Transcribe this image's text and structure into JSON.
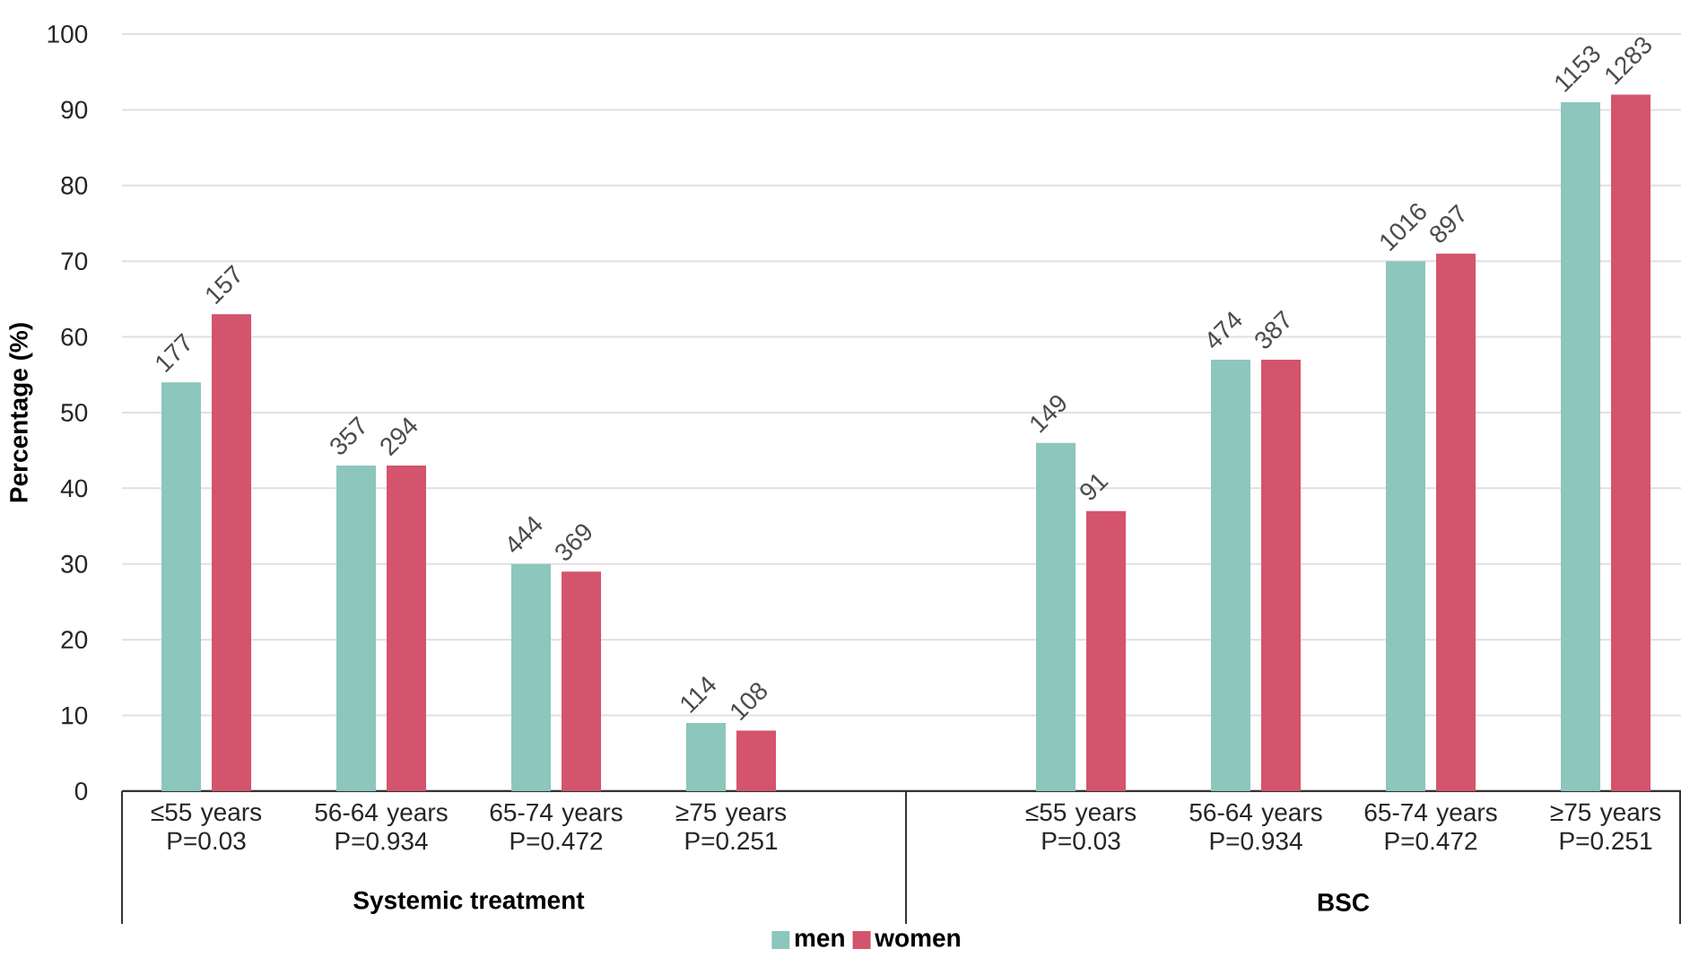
{
  "chart_data": {
    "type": "bar",
    "ylabel": "Percentage (%)",
    "categories": [
      "≤55 years P=0.03",
      "56-64 years P=0.934",
      "65-74 years P=0.472",
      "≥75 years P=0.251",
      null,
      "≤55 years P=0.03",
      "56-64 years P=0.934",
      "65-74 years P=0.472",
      "≥75 years P=0.251"
    ],
    "series": [
      {
        "name": "men",
        "color": "#8cc6bd",
        "values": [
          54,
          43,
          30,
          9,
          null,
          46,
          57,
          70,
          91
        ]
      },
      {
        "name": "women",
        "color": "#d3546c",
        "values": [
          63,
          43,
          29,
          8,
          null,
          37,
          57,
          71,
          92
        ]
      }
    ],
    "annotations": [
      "Systemic treatment",
      "BSC",
      "177",
      "357",
      "444",
      "114",
      "149",
      "474",
      "1016",
      "1153",
      "157",
      "294",
      "369",
      "108",
      "91",
      "387",
      "897",
      "1283"
    ],
    "ylim": [
      0,
      100
    ],
    "yticks": [
      0,
      10,
      20,
      30,
      40,
      50,
      60,
      70,
      80,
      90,
      100
    ],
    "grid": "y",
    "legend": "bottom"
  }
}
